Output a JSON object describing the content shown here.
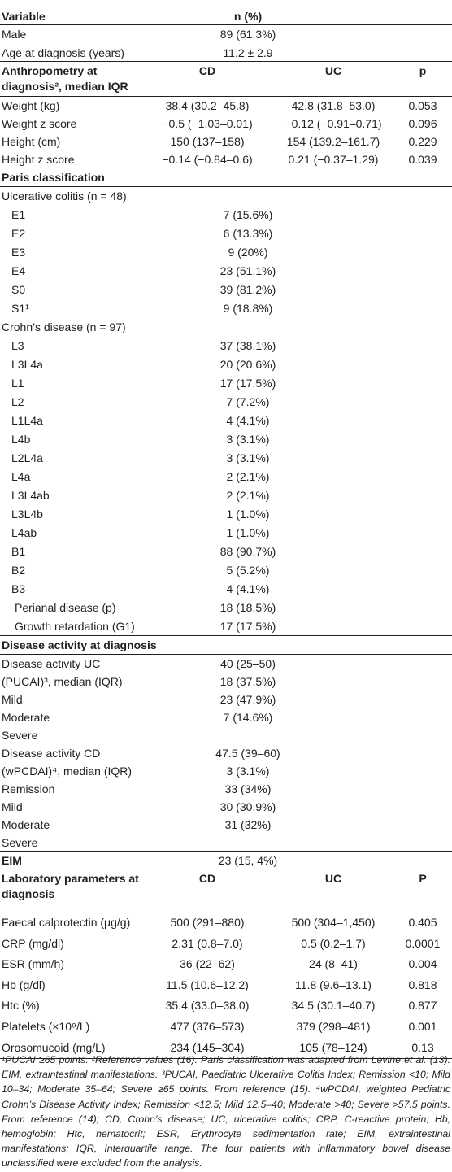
{
  "table": {
    "header": {
      "label": "Variable",
      "n": "n (%)"
    },
    "demographics": [
      {
        "label": "Male",
        "n": "89 (61.3%)"
      },
      {
        "label": "Age at diagnosis (years)",
        "n": "11.2 ± 2.9"
      }
    ],
    "anthropometry": {
      "header": {
        "label": "Anthropometry at diagnosis², median IQR",
        "cd": "CD",
        "uc": "UC",
        "p": "p"
      },
      "rows": [
        {
          "label": "Weight (kg)",
          "cd": "38.4 (30.2–45.8)",
          "uc": "42.8 (31.8–53.0)",
          "p": "0.053"
        },
        {
          "label": "Weight z score",
          "cd": "−0.5 (−1.03–0.01)",
          "uc": "−0.12 (−0.91–0.71)",
          "p": "0.096"
        },
        {
          "label": "Height (cm)",
          "cd": "150 (137–158)",
          "uc": "154 (139.2–161.7)",
          "p": "0.229"
        },
        {
          "label": "Height z score",
          "cd": "−0.14 (−0.84–0.6)",
          "uc": "0.21 (−0.37–1.29)",
          "p": "0.039"
        }
      ]
    },
    "paris": {
      "title": "Paris classification",
      "groups": [
        {
          "label": "Ulcerative colitis (n = 48)",
          "rows": [
            {
              "label": "E1",
              "n": "7 (15.6%)"
            },
            {
              "label": "E2",
              "n": "6 (13.3%)"
            },
            {
              "label": "E3",
              "n": "9 (20%)"
            },
            {
              "label": "E4",
              "n": "23 (51.1%)"
            },
            {
              "label": "S0",
              "n": "39 (81.2%)"
            },
            {
              "label": "S1¹",
              "n": "9 (18.8%)"
            }
          ]
        },
        {
          "label": "Crohn’s disease (n = 97)",
          "rows": [
            {
              "label": "L3",
              "n": "37 (38.1%)"
            },
            {
              "label": "L3L4a",
              "n": "20 (20.6%)"
            },
            {
              "label": "L1",
              "n": "17 (17.5%)"
            },
            {
              "label": "L2",
              "n": "7 (7.2%)"
            },
            {
              "label": "L1L4a",
              "n": "4 (4.1%)"
            },
            {
              "label": "L4b",
              "n": "3 (3.1%)"
            },
            {
              "label": "L2L4a",
              "n": "3 (3.1%)"
            },
            {
              "label": "L4a",
              "n": "2 (2.1%)"
            },
            {
              "label": "L3L4ab",
              "n": "2 (2.1%)"
            },
            {
              "label": "L3L4b",
              "n": "1 (1.0%)"
            },
            {
              "label": "L4ab",
              "n": "1 (1.0%)"
            },
            {
              "label": "B1",
              "n": "88 (90.7%)"
            },
            {
              "label": "B2",
              "n": "5 (5.2%)"
            },
            {
              "label": "B3",
              "n": "4 (4.1%)"
            },
            {
              "label": "Perianal disease (p)",
              "n": "18 (18.5%)"
            },
            {
              "label": "Growth retardation (G1)",
              "n": "17 (17.5%)"
            }
          ]
        }
      ]
    },
    "disease_activity": {
      "title": "Disease activity at diagnosis",
      "rows": [
        {
          "label": "Disease activity UC",
          "n": "40 (25–50)"
        },
        {
          "label": "(PUCAI)³, median (IQR)",
          "n": "18 (37.5%)"
        },
        {
          "label": "Mild",
          "n": "23 (47.9%)"
        },
        {
          "label": "Moderate",
          "n": "7 (14.6%)"
        },
        {
          "label": "Severe"
        },
        {
          "label": "Disease activity CD",
          "n": "47.5 (39–60)"
        },
        {
          "label": "(wPCDAI)⁴, median (IQR)",
          "n": "3 (3.1%)"
        },
        {
          "label": "Remission",
          "n": "33 (34%)"
        },
        {
          "label": "Mild",
          "n": "30 (30.9%)"
        },
        {
          "label": "Moderate",
          "n": "31 (32%)"
        },
        {
          "label": "Severe"
        }
      ]
    },
    "eim": {
      "label": "EIM",
      "n": "23 (15, 4%)"
    },
    "laboratory": {
      "header": {
        "label": "Laboratory parameters at diagnosis",
        "cd": "CD",
        "uc": "UC",
        "p": "P"
      },
      "rows": [
        {
          "label": "Faecal calprotectin (μg/g)",
          "cd": "500 (291–880)",
          "uc": "500 (304–1,450)",
          "p": "0.405"
        },
        {
          "label": "CRP (mg/dl)",
          "cd": "2.31 (0.8–7.0)",
          "uc": "0.5 (0.2–1.7)",
          "p": "0.0001"
        },
        {
          "label": "ESR (mm/h)",
          "cd": "36 (22–62)",
          "uc": "24 (8–41)",
          "p": "0.004"
        },
        {
          "label": "Hb (g/dl)",
          "cd": "11.5 (10.6–12.2)",
          "uc": "11.8 (9.6–13.1)",
          "p": "0.818"
        },
        {
          "label": "Htc (%)",
          "cd": "35.4 (33.0–38.0)",
          "uc": "34.5 (30.1–40.7)",
          "p": "0.877"
        },
        {
          "label": "Platelets (×10⁹/L)",
          "cd": "477 (376–573)",
          "uc": "379 (298–481)",
          "p": "0.001"
        },
        {
          "label": "Orosomucoid (mg/L)",
          "cd": "234 (145–304)",
          "uc": "105 (78–124)",
          "p": "0.13"
        }
      ]
    },
    "footnote": "¹PUCAI ≥65 points. ²Reference values (16). Paris classification was adapted from Levine et al. (13). EIM, extraintestinal manifestations. ³PUCAI, Paediatric Ulcerative Colitis Index; Remission <10; Mild 10–34; Moderate 35–64; Severe ≥65 points. From reference (15). ⁴wPCDAI, weighted Pediatric Crohn’s Disease Activity Index; Remission <12.5; Mild 12.5–40; Moderate >40; Severe >57.5 points. From reference (14); CD, Crohn’s disease; UC, ulcerative colitis; CRP, C-reactive protein; Hb, hemoglobin; Htc, hematocrit; ESR, Erythrocyte sedimentation rate; EIM, extraintestinal manifestations; IQR, Interquartile range. The four patients with inflammatory bowel disease unclassified were excluded from the analysis."
  }
}
